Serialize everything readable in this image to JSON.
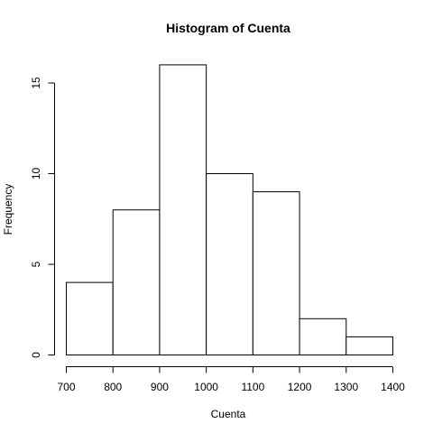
{
  "chart_data": {
    "type": "bar",
    "title": "Histogram of Cuenta",
    "xlabel": "Cuenta",
    "ylabel": "Frequency",
    "bins": [
      {
        "start": 700,
        "end": 800,
        "count": 4
      },
      {
        "start": 800,
        "end": 900,
        "count": 8
      },
      {
        "start": 900,
        "end": 1000,
        "count": 16
      },
      {
        "start": 1000,
        "end": 1100,
        "count": 10
      },
      {
        "start": 1100,
        "end": 1200,
        "count": 9
      },
      {
        "start": 1200,
        "end": 1300,
        "count": 2
      },
      {
        "start": 1300,
        "end": 1400,
        "count": 1
      }
    ],
    "x_ticks": [
      700,
      800,
      900,
      1000,
      1100,
      1200,
      1300,
      1400
    ],
    "y_ticks": [
      0,
      5,
      10,
      15
    ],
    "xlim": [
      700,
      1400
    ],
    "ylim": [
      0,
      16
    ],
    "grid": false,
    "bar_fill": "#ffffff",
    "bar_stroke": "#000000"
  }
}
